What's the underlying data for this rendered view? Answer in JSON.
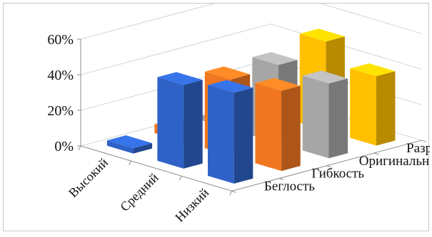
{
  "chart_data": {
    "type": "bar",
    "variant": "3d-column",
    "categories": [
      "Высокий",
      "Средний",
      "Низкий"
    ],
    "y_tick_labels": [
      "0%",
      "20%",
      "40%",
      "60%"
    ],
    "ylim": [
      0,
      60
    ],
    "grid": true,
    "series": [
      {
        "name": "Беглость",
        "color": "#2f62c6",
        "values": [
          3,
          47,
          51
        ]
      },
      {
        "name": "Гибкость",
        "color": "#f07720",
        "values": [
          5,
          43,
          45
        ]
      },
      {
        "name": "Оригинальность",
        "color": "#a6a6a6",
        "values": [
          3,
          44,
          42
        ]
      },
      {
        "name": "Разработанность",
        "color": "#ffc000",
        "values": [
          2,
          50,
          39
        ]
      }
    ]
  }
}
